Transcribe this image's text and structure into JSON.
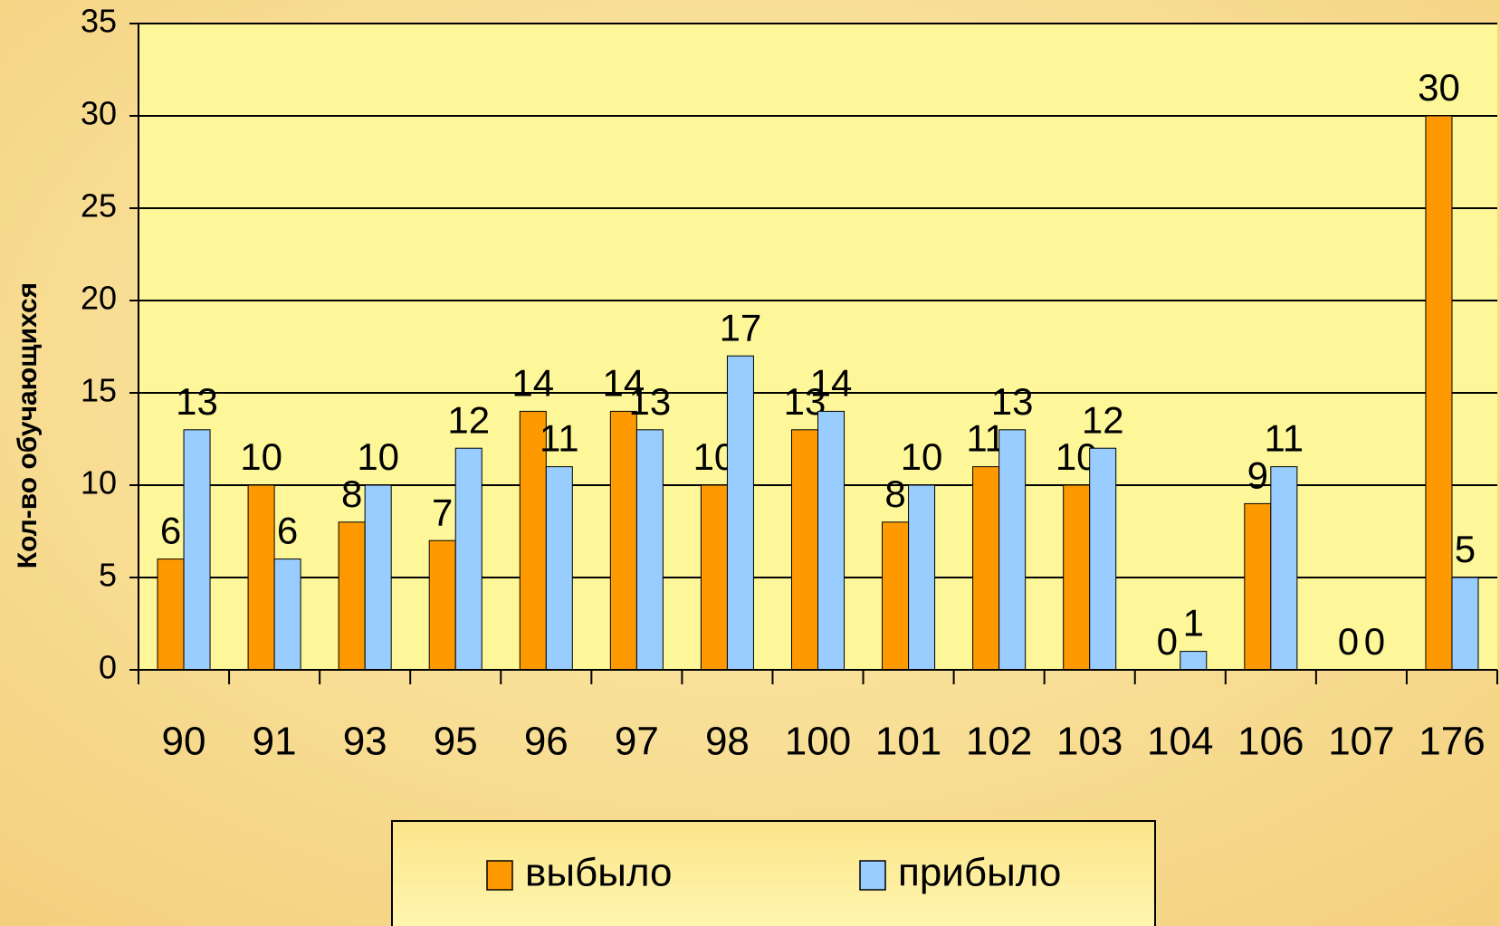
{
  "chart_data": {
    "type": "bar",
    "y_axis_label": "Кол-во обучающихся",
    "categories": [
      "90",
      "91",
      "93",
      "95",
      "96",
      "97",
      "98",
      "100",
      "101",
      "102",
      "103",
      "104",
      "106",
      "107",
      "176"
    ],
    "series": [
      {
        "name": "выбыло",
        "color": "#ff9900",
        "values": [
          6,
          10,
          8,
          7,
          14,
          14,
          10,
          13,
          8,
          11,
          10,
          0,
          9,
          0,
          30
        ]
      },
      {
        "name": "прибыло",
        "color": "#99ccff",
        "values": [
          13,
          6,
          10,
          12,
          11,
          13,
          17,
          14,
          10,
          13,
          12,
          1,
          11,
          0,
          5
        ]
      }
    ],
    "ylim": [
      0,
      35
    ],
    "yticks": [
      0,
      5,
      10,
      15,
      20,
      25,
      30,
      35
    ],
    "grid": true,
    "legend": "bottom"
  }
}
